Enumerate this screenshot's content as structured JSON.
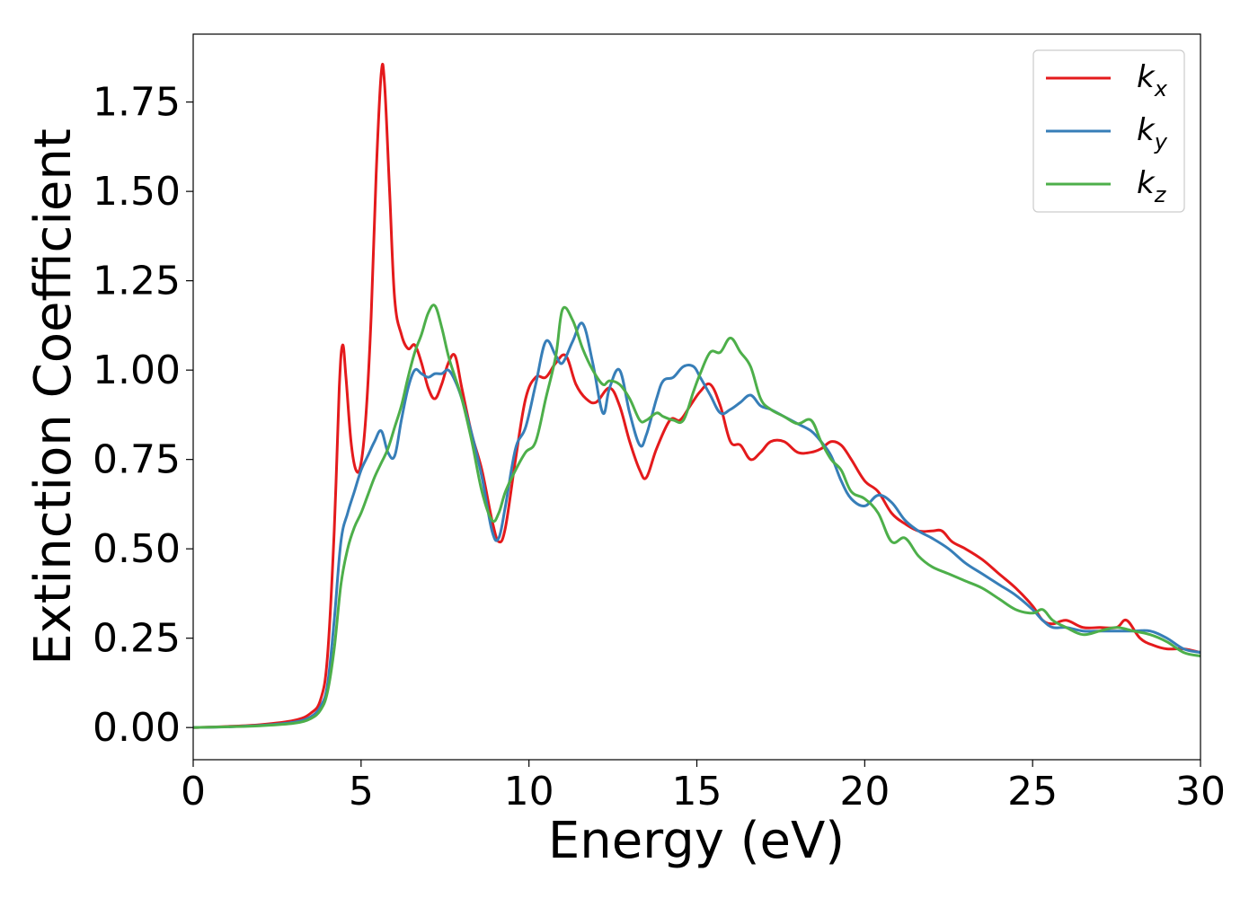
{
  "chart_data": {
    "type": "line",
    "xlabel": "Energy (eV)",
    "ylabel": "Extinction Coefficient",
    "xlim": [
      0,
      30
    ],
    "ylim": [
      -0.09,
      1.94
    ],
    "xticks": [
      0,
      5,
      10,
      15,
      20,
      25,
      30
    ],
    "xtick_labels": [
      "0",
      "5",
      "10",
      "15",
      "20",
      "25",
      "30"
    ],
    "yticks": [
      0.0,
      0.25,
      0.5,
      0.75,
      1.0,
      1.25,
      1.5,
      1.75
    ],
    "ytick_labels": [
      "0.00",
      "0.25",
      "0.50",
      "0.75",
      "1.00",
      "1.25",
      "1.50",
      "1.75"
    ],
    "grid": false,
    "legend_position": "top-right",
    "series": [
      {
        "name": "k",
        "subscript": "x",
        "color": "#e41a1c",
        "x": [
          0,
          1,
          2,
          3,
          3.5,
          3.8,
          4.0,
          4.2,
          4.35,
          4.45,
          4.55,
          4.7,
          4.85,
          5.0,
          5.15,
          5.3,
          5.45,
          5.6,
          5.7,
          5.85,
          6.0,
          6.2,
          6.4,
          6.6,
          6.8,
          7.0,
          7.2,
          7.4,
          7.6,
          7.8,
          8.0,
          8.3,
          8.6,
          8.9,
          9.1,
          9.3,
          9.6,
          9.9,
          10.2,
          10.5,
          10.8,
          11.1,
          11.4,
          11.7,
          12.0,
          12.4,
          12.7,
          13.0,
          13.3,
          13.5,
          13.8,
          14.2,
          14.5,
          14.8,
          15.1,
          15.4,
          15.7,
          16.0,
          16.3,
          16.6,
          16.9,
          17.2,
          17.6,
          18.0,
          18.4,
          18.7,
          19.0,
          19.3,
          19.6,
          20.0,
          20.4,
          20.8,
          21.2,
          21.6,
          22.0,
          22.3,
          22.6,
          23.0,
          23.5,
          24.0,
          24.5,
          25.0,
          25.3,
          25.6,
          26.0,
          26.5,
          27.0,
          27.5,
          27.8,
          28.2,
          28.6,
          29.0,
          29.5,
          30.0
        ],
        "values": [
          0.0,
          0.003,
          0.008,
          0.02,
          0.04,
          0.08,
          0.2,
          0.55,
          0.95,
          1.07,
          0.98,
          0.8,
          0.72,
          0.74,
          0.88,
          1.15,
          1.55,
          1.83,
          1.8,
          1.5,
          1.2,
          1.1,
          1.06,
          1.07,
          1.02,
          0.95,
          0.92,
          0.96,
          1.02,
          1.04,
          0.95,
          0.82,
          0.72,
          0.58,
          0.52,
          0.56,
          0.75,
          0.92,
          0.98,
          0.98,
          1.02,
          1.04,
          0.96,
          0.92,
          0.91,
          0.95,
          0.9,
          0.8,
          0.72,
          0.7,
          0.78,
          0.86,
          0.86,
          0.9,
          0.94,
          0.96,
          0.9,
          0.8,
          0.79,
          0.75,
          0.77,
          0.8,
          0.8,
          0.77,
          0.77,
          0.78,
          0.8,
          0.79,
          0.75,
          0.69,
          0.66,
          0.6,
          0.57,
          0.55,
          0.55,
          0.55,
          0.52,
          0.5,
          0.47,
          0.43,
          0.39,
          0.34,
          0.3,
          0.29,
          0.3,
          0.28,
          0.28,
          0.28,
          0.3,
          0.25,
          0.23,
          0.22,
          0.22,
          0.21
        ]
      },
      {
        "name": "k",
        "subscript": "y",
        "color": "#377eb8",
        "x": [
          0,
          1,
          2,
          3,
          3.5,
          3.8,
          4.0,
          4.2,
          4.4,
          4.6,
          4.8,
          5.0,
          5.2,
          5.4,
          5.6,
          5.8,
          6.0,
          6.2,
          6.4,
          6.6,
          6.8,
          7.0,
          7.2,
          7.4,
          7.6,
          7.8,
          8.0,
          8.3,
          8.6,
          8.9,
          9.1,
          9.3,
          9.6,
          9.9,
          10.2,
          10.5,
          10.8,
          11.0,
          11.3,
          11.6,
          11.9,
          12.2,
          12.4,
          12.7,
          13.0,
          13.3,
          13.5,
          13.8,
          14.0,
          14.3,
          14.6,
          14.9,
          15.1,
          15.4,
          15.7,
          16.0,
          16.3,
          16.6,
          16.9,
          17.2,
          17.6,
          18.0,
          18.4,
          18.7,
          19.0,
          19.3,
          19.6,
          20.0,
          20.4,
          20.8,
          21.2,
          21.6,
          22.0,
          22.5,
          23.0,
          23.5,
          24.0,
          24.5,
          25.0,
          25.3,
          25.6,
          26.0,
          26.5,
          27.0,
          27.5,
          28.0,
          28.5,
          29.0,
          29.5,
          30.0
        ],
        "values": [
          0.0,
          0.002,
          0.006,
          0.015,
          0.03,
          0.06,
          0.12,
          0.3,
          0.52,
          0.6,
          0.66,
          0.72,
          0.76,
          0.8,
          0.83,
          0.77,
          0.76,
          0.86,
          0.95,
          1.0,
          0.99,
          0.98,
          0.99,
          0.99,
          1.0,
          0.97,
          0.92,
          0.82,
          0.7,
          0.55,
          0.53,
          0.62,
          0.78,
          0.84,
          0.96,
          1.08,
          1.04,
          1.02,
          1.08,
          1.13,
          1.02,
          0.88,
          0.95,
          1.0,
          0.88,
          0.79,
          0.82,
          0.92,
          0.97,
          0.98,
          1.01,
          1.01,
          0.98,
          0.93,
          0.88,
          0.89,
          0.91,
          0.93,
          0.9,
          0.89,
          0.87,
          0.85,
          0.83,
          0.8,
          0.76,
          0.69,
          0.64,
          0.62,
          0.65,
          0.63,
          0.58,
          0.55,
          0.53,
          0.5,
          0.46,
          0.43,
          0.4,
          0.37,
          0.33,
          0.3,
          0.28,
          0.28,
          0.27,
          0.27,
          0.27,
          0.27,
          0.27,
          0.25,
          0.22,
          0.21
        ]
      },
      {
        "name": "k",
        "subscript": "z",
        "color": "#4daf4a",
        "x": [
          0,
          1,
          2,
          3,
          3.5,
          3.8,
          4.0,
          4.2,
          4.4,
          4.6,
          4.8,
          5.0,
          5.2,
          5.4,
          5.6,
          5.8,
          6.0,
          6.2,
          6.4,
          6.6,
          6.8,
          7.0,
          7.2,
          7.4,
          7.6,
          7.8,
          8.0,
          8.3,
          8.6,
          8.9,
          9.1,
          9.3,
          9.6,
          9.9,
          10.2,
          10.5,
          10.8,
          11.0,
          11.3,
          11.6,
          11.9,
          12.2,
          12.4,
          12.7,
          13.0,
          13.3,
          13.5,
          13.8,
          14.0,
          14.3,
          14.6,
          14.9,
          15.1,
          15.4,
          15.7,
          16.0,
          16.3,
          16.6,
          16.9,
          17.2,
          17.6,
          18.0,
          18.4,
          18.7,
          19.0,
          19.3,
          19.6,
          20.0,
          20.4,
          20.8,
          21.2,
          21.6,
          22.0,
          22.5,
          23.0,
          23.5,
          24.0,
          24.5,
          25.0,
          25.3,
          25.6,
          26.0,
          26.5,
          27.0,
          27.5,
          28.0,
          28.5,
          29.0,
          29.5,
          30.0
        ],
        "values": [
          0.0,
          0.002,
          0.005,
          0.012,
          0.025,
          0.05,
          0.1,
          0.22,
          0.4,
          0.5,
          0.56,
          0.6,
          0.65,
          0.7,
          0.74,
          0.78,
          0.84,
          0.9,
          0.98,
          1.05,
          1.1,
          1.16,
          1.18,
          1.12,
          1.04,
          0.98,
          0.92,
          0.8,
          0.66,
          0.58,
          0.6,
          0.66,
          0.72,
          0.77,
          0.8,
          0.92,
          1.04,
          1.17,
          1.14,
          1.06,
          1.0,
          0.96,
          0.97,
          0.96,
          0.92,
          0.86,
          0.86,
          0.88,
          0.87,
          0.86,
          0.86,
          0.94,
          0.99,
          1.05,
          1.05,
          1.09,
          1.05,
          1.01,
          0.92,
          0.89,
          0.87,
          0.85,
          0.86,
          0.8,
          0.75,
          0.72,
          0.66,
          0.64,
          0.6,
          0.52,
          0.53,
          0.48,
          0.45,
          0.43,
          0.41,
          0.39,
          0.36,
          0.33,
          0.32,
          0.33,
          0.3,
          0.28,
          0.26,
          0.27,
          0.28,
          0.27,
          0.26,
          0.24,
          0.21,
          0.2
        ]
      }
    ]
  }
}
